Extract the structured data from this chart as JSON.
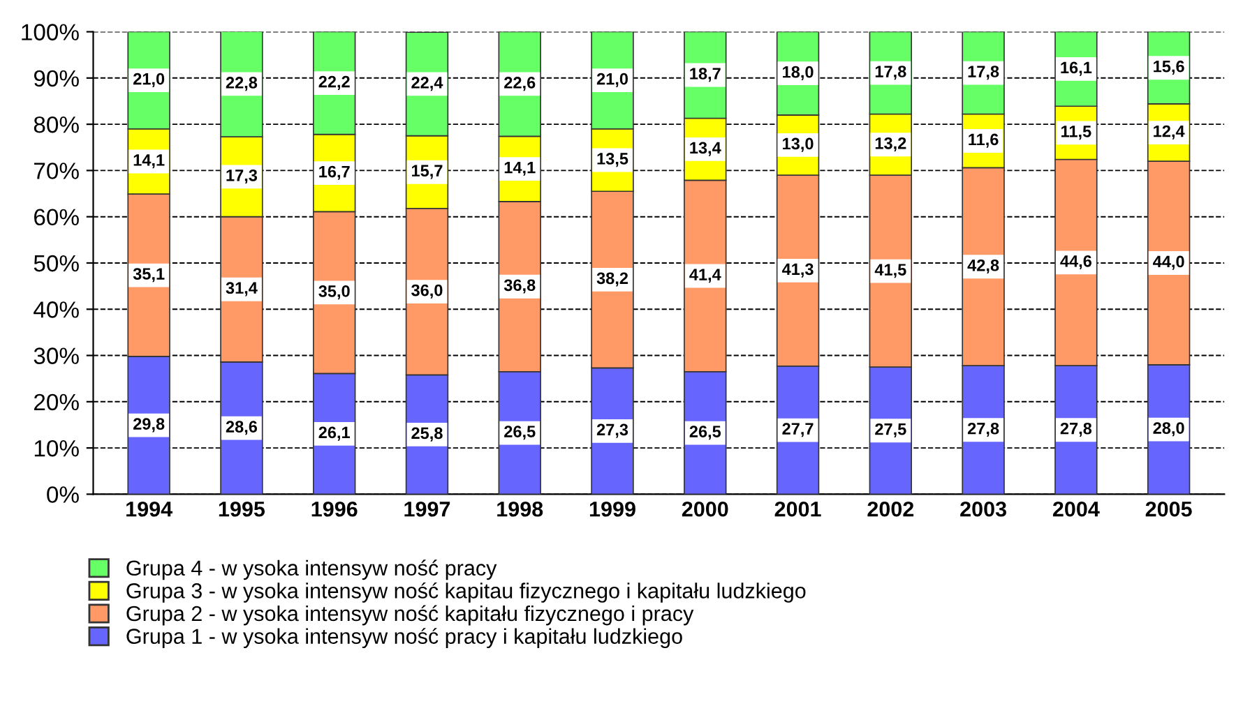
{
  "chart_data": {
    "type": "bar",
    "stacked": true,
    "categories": [
      "1994",
      "1995",
      "1996",
      "1997",
      "1998",
      "1999",
      "2000",
      "2001",
      "2002",
      "2003",
      "2004",
      "2005"
    ],
    "series": [
      {
        "name": "Grupa 1 - w ysoka intensyw ność pracy i kapitału ludzkiego",
        "color": "#6666ff",
        "values": [
          29.8,
          28.6,
          26.1,
          25.8,
          26.5,
          27.3,
          26.5,
          27.7,
          27.5,
          27.8,
          27.8,
          28.0
        ],
        "value_labels": [
          "29,8",
          "28,6",
          "26,1",
          "25,8",
          "26,5",
          "27,3",
          "26,5",
          "27,7",
          "27,5",
          "27,8",
          "27,8",
          "28,0"
        ]
      },
      {
        "name": "Grupa 2 - w ysoka intensyw ność kapitału fizycznego i pracy",
        "color": "#ff9966",
        "values": [
          35.1,
          31.4,
          35.0,
          36.0,
          36.8,
          38.2,
          41.4,
          41.3,
          41.5,
          42.8,
          44.6,
          44.0
        ],
        "value_labels": [
          "35,1",
          "31,4",
          "35,0",
          "36,0",
          "36,8",
          "38,2",
          "41,4",
          "41,3",
          "41,5",
          "42,8",
          "44,6",
          "44,0"
        ]
      },
      {
        "name": "Grupa 3 - w ysoka intensyw ność kapitau fizycznego i kapitału ludzkiego",
        "color": "#ffff00",
        "values": [
          14.1,
          17.3,
          16.7,
          15.7,
          14.1,
          13.5,
          13.4,
          13.0,
          13.2,
          11.6,
          11.5,
          12.4
        ],
        "value_labels": [
          "14,1",
          "17,3",
          "16,7",
          "15,7",
          "14,1",
          "13,5",
          "13,4",
          "13,0",
          "13,2",
          "11,6",
          "11,5",
          "12,4"
        ]
      },
      {
        "name": "Grupa 4 - w ysoka intensyw ność pracy",
        "color": "#66ff66",
        "values": [
          21.0,
          22.8,
          22.2,
          22.4,
          22.6,
          21.0,
          18.7,
          18.0,
          17.8,
          17.8,
          16.1,
          15.6
        ],
        "value_labels": [
          "21,0",
          "22,8",
          "22,2",
          "22,4",
          "22,6",
          "21,0",
          "18,7",
          "18,0",
          "17,8",
          "17,8",
          "16,1",
          "15,6"
        ]
      }
    ],
    "ylim": [
      0,
      100
    ],
    "yticks": [
      {
        "value": 0,
        "label": "0%"
      },
      {
        "value": 10,
        "label": "10%"
      },
      {
        "value": 20,
        "label": "20%"
      },
      {
        "value": 30,
        "label": "30%"
      },
      {
        "value": 40,
        "label": "40%"
      },
      {
        "value": 50,
        "label": "50%"
      },
      {
        "value": 60,
        "label": "60%"
      },
      {
        "value": 70,
        "label": "70%"
      },
      {
        "value": 80,
        "label": "80%"
      },
      {
        "value": 90,
        "label": "90%"
      },
      {
        "value": 100,
        "label": "100%"
      }
    ],
    "grid": "y",
    "line_style": "dashed",
    "legend": "bottom"
  }
}
